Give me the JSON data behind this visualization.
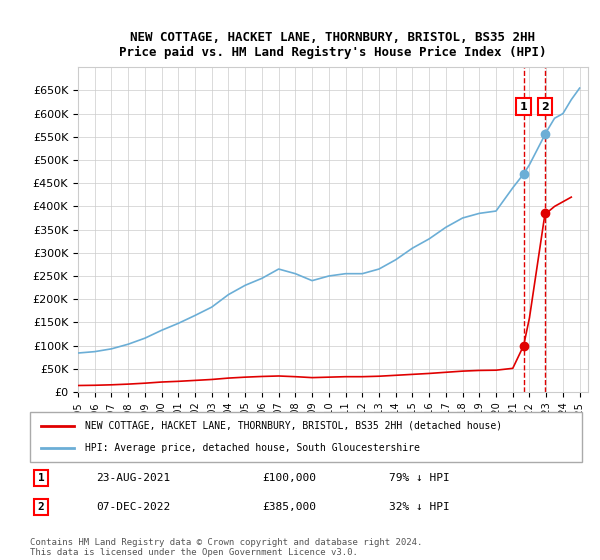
{
  "title": "NEW COTTAGE, HACKET LANE, THORNBURY, BRISTOL, BS35 2HH",
  "subtitle": "Price paid vs. HM Land Registry's House Price Index (HPI)",
  "hpi_label": "HPI: Average price, detached house, South Gloucestershire",
  "property_label": "NEW COTTAGE, HACKET LANE, THORNBURY, BRISTOL, BS35 2HH (detached house)",
  "copyright": "Contains HM Land Registry data © Crown copyright and database right 2024.\nThis data is licensed under the Open Government Licence v3.0.",
  "hpi_color": "#6baed6",
  "property_color": "#e00000",
  "dashed_color": "#e00000",
  "sale1_date": "23-AUG-2021",
  "sale1_price": "£100,000",
  "sale1_hpi": "79% ↓ HPI",
  "sale1_year": 2021.65,
  "sale1_value": 100000,
  "sale2_date": "07-DEC-2022",
  "sale2_price": "£385,000",
  "sale2_hpi": "32% ↓ HPI",
  "sale2_year": 2022.93,
  "sale2_value": 385000,
  "ylim": [
    0,
    700000
  ],
  "xlim": [
    1995,
    2025.5
  ],
  "hpi_years": [
    1995,
    1996,
    1997,
    1998,
    1999,
    2000,
    2001,
    2002,
    2003,
    2004,
    2005,
    2006,
    2007,
    2008,
    2009,
    2010,
    2011,
    2012,
    2013,
    2014,
    2015,
    2016,
    2017,
    2018,
    2019,
    2020,
    2021,
    2021.65,
    2022,
    2022.93,
    2023,
    2023.5,
    2024,
    2024.5,
    2025
  ],
  "hpi_values": [
    84000,
    87000,
    93000,
    103000,
    116000,
    133000,
    148000,
    165000,
    183000,
    210000,
    230000,
    245000,
    265000,
    255000,
    240000,
    250000,
    255000,
    255000,
    265000,
    285000,
    310000,
    330000,
    355000,
    375000,
    385000,
    390000,
    440000,
    470000,
    490000,
    555000,
    560000,
    590000,
    600000,
    630000,
    655000
  ],
  "red_years": [
    1995,
    1996,
    1997,
    1998,
    1999,
    2000,
    2001,
    2002,
    2003,
    2004,
    2005,
    2006,
    2007,
    2008,
    2009,
    2010,
    2011,
    2012,
    2013,
    2014,
    2015,
    2016,
    2017,
    2018,
    2019,
    2020,
    2021,
    2021.65,
    2022,
    2022.93,
    2023,
    2023.5,
    2024,
    2024.5
  ],
  "red_values": [
    14000,
    14500,
    15500,
    17000,
    19000,
    21500,
    23000,
    25000,
    27000,
    30000,
    32000,
    33500,
    34500,
    33000,
    31000,
    32000,
    33000,
    33000,
    34000,
    36000,
    38000,
    40000,
    42500,
    45000,
    46500,
    47000,
    51000,
    100000,
    160000,
    385000,
    385000,
    400000,
    410000,
    420000
  ]
}
